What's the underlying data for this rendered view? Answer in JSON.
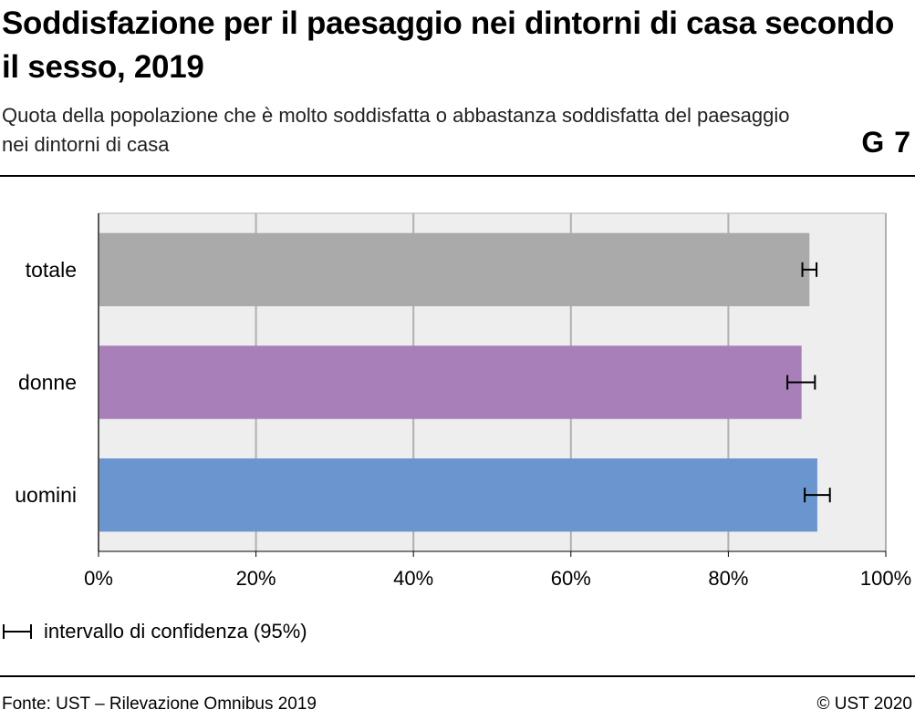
{
  "title": "Soddisfazione per il paesaggio nei dintorni di casa secondo il sesso, 2019",
  "subtitle": "Quota della popolazione che è molto soddisfatta o abbastanza soddisfatta del paesaggio nei dintorni di casa",
  "graphic_number": "G 7",
  "legend": {
    "label": "intervallo di confidenza (95%)",
    "icon": "error-bar-icon"
  },
  "footer": {
    "source": "Fonte: UST – Rilevazione Omnibus 2019",
    "copyright": "© UST 2020"
  },
  "colors": {
    "totale": "#aaaaaa",
    "donne": "#a87fb8",
    "uomini": "#6a95cf",
    "plot_bg": "#eeeeee",
    "grid": "#b0b0b0"
  },
  "chart_data": {
    "type": "bar",
    "orientation": "horizontal",
    "categories": [
      "totale",
      "donne",
      "uomini"
    ],
    "values": [
      90.3,
      89.3,
      91.3
    ],
    "confidence_interval_95": [
      [
        89.4,
        91.2
      ],
      [
        87.5,
        91.0
      ],
      [
        89.7,
        92.9
      ]
    ],
    "x_ticks": [
      "0%",
      "20%",
      "40%",
      "60%",
      "80%",
      "100%"
    ],
    "xlim": [
      0,
      100
    ],
    "unit": "%",
    "grid": true,
    "legend_position": "bottom-left"
  }
}
